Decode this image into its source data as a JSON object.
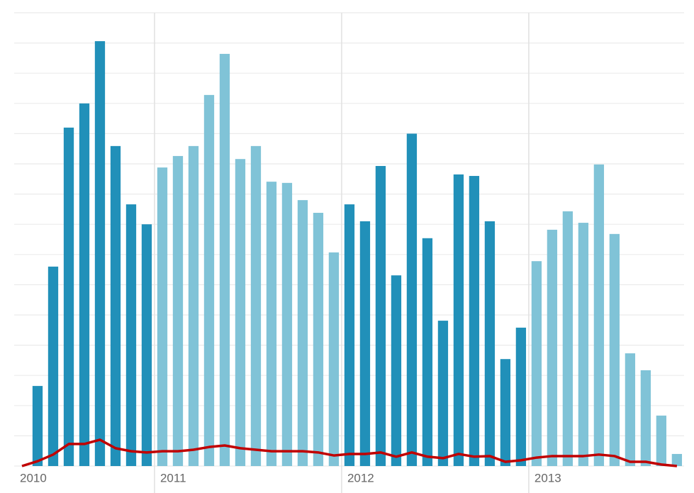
{
  "chart_data": {
    "type": "bar",
    "x": [
      2010.2917,
      2010.375,
      2010.4583,
      2010.5417,
      2010.625,
      2010.7083,
      2010.7917,
      2010.875,
      2010.9583,
      2011.0417,
      2011.125,
      2011.2083,
      2011.2917,
      2011.375,
      2011.4583,
      2011.5417,
      2011.625,
      2011.7083,
      2011.7917,
      2011.875,
      2011.9583,
      2012.0417,
      2012.125,
      2012.2083,
      2012.2917,
      2012.375,
      2012.4583,
      2012.5417,
      2012.625,
      2012.7083,
      2012.7917,
      2012.875,
      2012.9583,
      2013.0417,
      2013.125,
      2013.2083,
      2013.2917,
      2013.375,
      2013.4583,
      2013.5417,
      2013.625,
      2013.7083,
      2013.7917
    ],
    "series": [
      {
        "type": "bar",
        "color": "#2190b9",
        "values": [
          null,
          2.65,
          6.6,
          11.2,
          12.0,
          14.06,
          10.59,
          8.66,
          8.0,
          null,
          null,
          null,
          null,
          null,
          null,
          null,
          null,
          null,
          null,
          null,
          null,
          8.66,
          8.1,
          9.93,
          6.31,
          11.0,
          7.54,
          4.81,
          9.65,
          9.6,
          8.1,
          3.54,
          4.58,
          null,
          null,
          null,
          null,
          null,
          null,
          null,
          null,
          null,
          null
        ]
      },
      {
        "type": "bar",
        "color": "#80c3d7",
        "values": [
          null,
          null,
          null,
          null,
          null,
          null,
          null,
          null,
          null,
          9.88,
          10.26,
          10.59,
          12.28,
          13.64,
          10.16,
          10.59,
          9.41,
          9.37,
          8.8,
          8.38,
          7.07,
          null,
          null,
          null,
          null,
          null,
          null,
          null,
          null,
          null,
          null,
          null,
          null,
          6.78,
          7.82,
          8.43,
          8.05,
          9.98,
          7.68,
          3.73,
          3.17,
          1.67,
          0.4
        ]
      },
      {
        "type": "line",
        "color": "#c00000",
        "values": [
          0,
          0.16,
          0.38,
          0.73,
          0.73,
          0.87,
          0.59,
          0.49,
          0.45,
          0.49,
          0.49,
          0.54,
          0.63,
          0.68,
          0.59,
          0.54,
          0.49,
          0.49,
          0.49,
          0.45,
          0.35,
          0.4,
          0.4,
          0.45,
          0.31,
          0.45,
          0.31,
          0.26,
          0.4,
          0.31,
          0.33,
          0.14,
          0.19,
          0.28,
          0.33,
          0.33,
          0.33,
          0.38,
          0.33,
          0.14,
          0.14,
          0.05,
          0
        ]
      }
    ],
    "xlim": [
      2010.25,
      2013.83
    ],
    "xticks": [
      2010,
      2011,
      2012,
      2013
    ],
    "ylim": [
      0,
      15
    ],
    "yticks": [
      0,
      1,
      2,
      3,
      4,
      5,
      6,
      7,
      8,
      9,
      10,
      11,
      12,
      13,
      14,
      15
    ],
    "grid": true
  }
}
